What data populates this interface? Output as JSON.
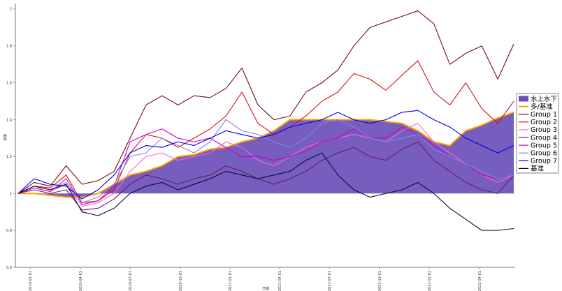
{
  "chart_data": {
    "type": "line",
    "xlabel": "日期",
    "ylabel": "净值",
    "ylim": [
      0.6,
      2.0
    ],
    "y_ticks": [
      "0.6",
      "0.8",
      "1",
      "1.2",
      "1.4",
      "1.6",
      "1.8",
      "2"
    ],
    "x_ticks": [
      "2020-01-01",
      "2020-04-01",
      "2020-07-01",
      "2020-10-01",
      "2021-01-01",
      "2021-04-01",
      "2021-07-01",
      "2021-10-01",
      "2022-01-01",
      "2022-04-01"
    ],
    "legend_position": "right",
    "area_series": {
      "name": "水上水下",
      "color": "#6a4fb8",
      "outline_name": "多/基准",
      "outline_color": "#ffa000",
      "values": [
        1.0,
        1.0,
        0.99,
        0.98,
        0.98,
        1.0,
        1.05,
        1.1,
        1.12,
        1.15,
        1.2,
        1.21,
        1.24,
        1.25,
        1.28,
        1.3,
        1.34,
        1.4,
        1.4,
        1.4,
        1.4,
        1.4,
        1.4,
        1.39,
        1.38,
        1.34,
        1.28,
        1.26,
        1.34,
        1.37,
        1.41,
        1.44
      ]
    },
    "series": [
      {
        "name": "Group 1",
        "color": "#7a0c0c",
        "values": [
          1.0,
          1.06,
          1.04,
          1.15,
          1.05,
          1.07,
          1.12,
          1.3,
          1.48,
          1.53,
          1.48,
          1.53,
          1.52,
          1.57,
          1.68,
          1.48,
          1.4,
          1.42,
          1.55,
          1.6,
          1.67,
          1.8,
          1.9,
          1.93,
          1.96,
          1.99,
          1.92,
          1.7,
          1.76,
          1.8,
          1.62,
          1.81
        ]
      },
      {
        "name": "Group 2",
        "color": "#dd1111",
        "values": [
          1.0,
          1.04,
          1.03,
          1.1,
          0.95,
          0.96,
          1.02,
          1.22,
          1.32,
          1.3,
          1.25,
          1.3,
          1.35,
          1.42,
          1.55,
          1.38,
          1.32,
          1.36,
          1.42,
          1.5,
          1.55,
          1.65,
          1.62,
          1.56,
          1.64,
          1.72,
          1.55,
          1.48,
          1.6,
          1.46,
          1.38,
          1.5
        ]
      },
      {
        "name": "Group 3",
        "color": "#ff66cc",
        "values": [
          1.0,
          1.03,
          1.01,
          1.05,
          0.93,
          0.95,
          1.0,
          1.12,
          1.2,
          1.22,
          1.18,
          1.2,
          1.22,
          1.28,
          1.25,
          1.18,
          1.15,
          1.2,
          1.25,
          1.28,
          1.3,
          1.32,
          1.3,
          1.28,
          1.34,
          1.38,
          1.28,
          1.22,
          1.16,
          1.1,
          1.06,
          1.1
        ]
      },
      {
        "name": "Group 4",
        "color": "#6a1a6a",
        "values": [
          1.0,
          1.02,
          1.0,
          1.02,
          0.91,
          0.92,
          0.97,
          1.05,
          1.1,
          1.08,
          1.05,
          1.08,
          1.1,
          1.15,
          1.12,
          1.08,
          1.05,
          1.08,
          1.12,
          1.18,
          1.22,
          1.25,
          1.2,
          1.18,
          1.24,
          1.28,
          1.18,
          1.12,
          1.06,
          1.02,
          1.0,
          1.1
        ]
      },
      {
        "name": "Group 5",
        "color": "#cc00cc",
        "values": [
          1.0,
          1.03,
          1.01,
          1.08,
          0.94,
          0.96,
          1.04,
          1.28,
          1.32,
          1.35,
          1.3,
          1.28,
          1.3,
          1.25,
          1.2,
          1.2,
          1.18,
          1.2,
          1.23,
          1.28,
          1.3,
          1.35,
          1.3,
          1.3,
          1.36,
          1.32,
          1.26,
          1.2,
          1.16,
          1.1,
          1.08,
          1.1
        ]
      },
      {
        "name": "Group 6",
        "color": "#7788ee",
        "values": [
          1.0,
          1.04,
          1.02,
          1.06,
          0.95,
          0.98,
          1.05,
          1.2,
          1.22,
          1.3,
          1.26,
          1.22,
          1.28,
          1.4,
          1.34,
          1.32,
          1.28,
          1.25,
          1.3,
          1.38,
          1.4,
          1.36,
          1.3,
          1.28,
          1.3,
          1.32,
          1.24,
          1.2,
          1.16,
          1.12,
          1.08,
          1.1
        ]
      },
      {
        "name": "Group 7",
        "color": "#0000ee",
        "values": [
          1.0,
          1.08,
          1.05,
          1.04,
          0.97,
          1.02,
          1.1,
          1.22,
          1.26,
          1.25,
          1.28,
          1.26,
          1.3,
          1.34,
          1.32,
          1.3,
          1.32,
          1.36,
          1.38,
          1.4,
          1.44,
          1.4,
          1.38,
          1.4,
          1.44,
          1.45,
          1.4,
          1.36,
          1.3,
          1.26,
          1.22,
          1.26
        ]
      },
      {
        "name": "基准",
        "color": "#0a0a3a",
        "values": [
          1.0,
          1.04,
          1.02,
          1.05,
          0.9,
          0.88,
          0.92,
          1.0,
          1.04,
          1.06,
          1.02,
          1.05,
          1.08,
          1.12,
          1.1,
          1.08,
          1.1,
          1.12,
          1.18,
          1.22,
          1.1,
          1.02,
          0.98,
          1.0,
          1.02,
          1.06,
          1.0,
          0.92,
          0.86,
          0.8,
          0.8,
          0.81
        ]
      }
    ]
  }
}
